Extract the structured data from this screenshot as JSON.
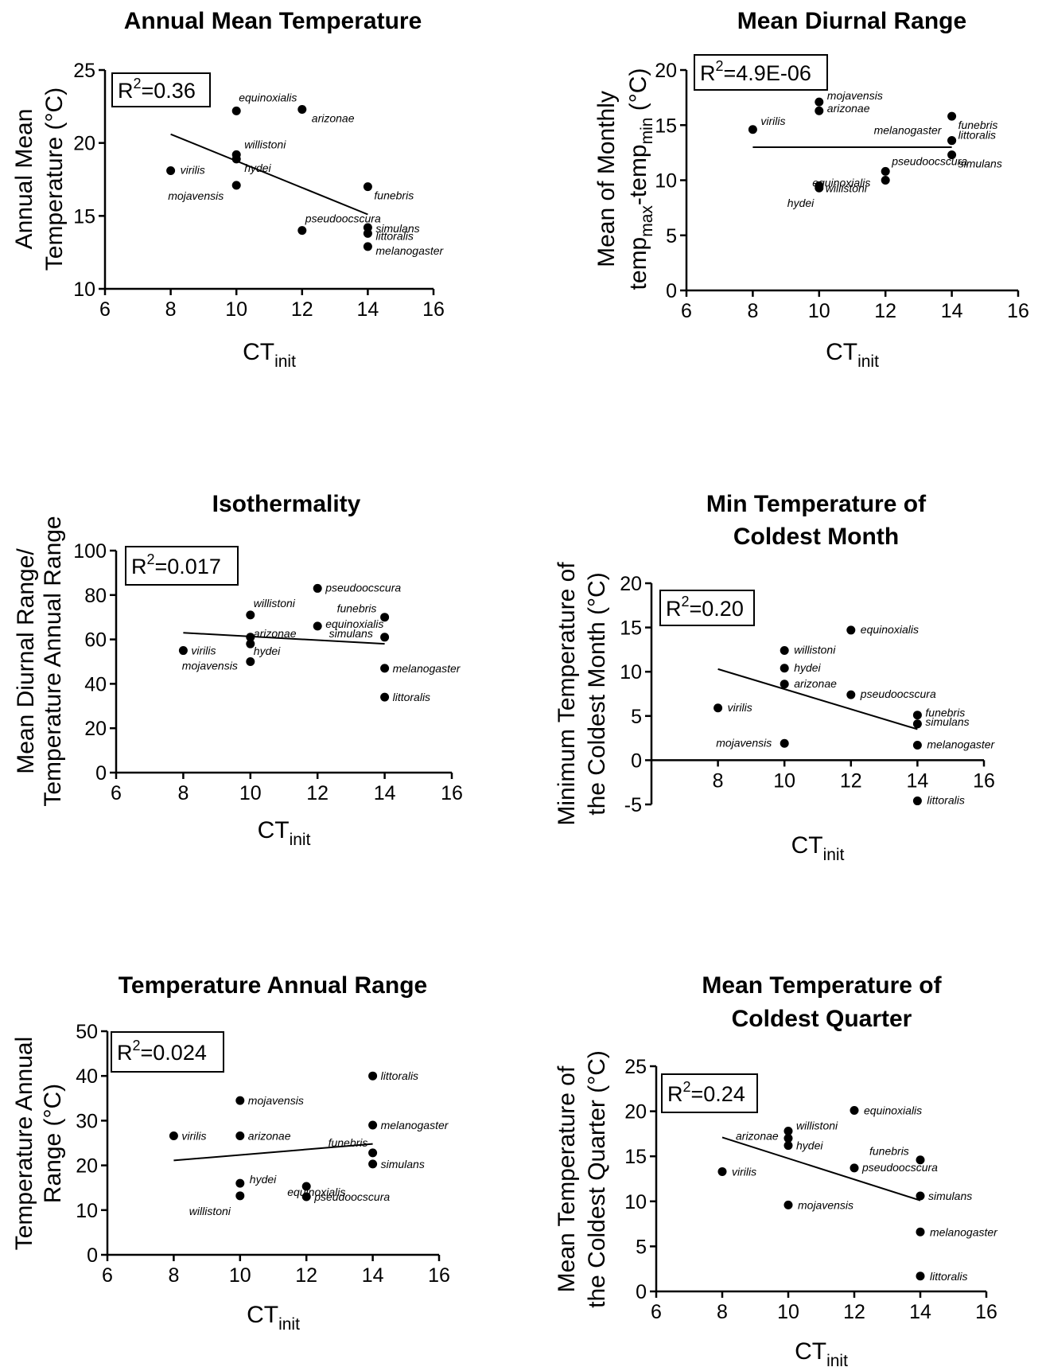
{
  "chart_data": [
    {
      "type": "scatter",
      "title": [
        "Annual Mean Temperature"
      ],
      "ylabel": [
        "Annual Mean",
        "Temperature  (°C)"
      ],
      "xlabel": {
        "main": "CT",
        "sub": "init"
      },
      "r2": {
        "base": "R",
        "sup": "2",
        "value": "=0.36"
      },
      "xlim": [
        6,
        16
      ],
      "ylim": [
        10,
        25
      ],
      "xticks": [
        6,
        8,
        10,
        12,
        14,
        16
      ],
      "yticks": [
        10,
        15,
        20,
        25
      ],
      "points": [
        {
          "x": 8,
          "y": 18.1,
          "name": "virilis"
        },
        {
          "x": 10,
          "y": 22.2,
          "name": "equinoxialis"
        },
        {
          "x": 12,
          "y": 22.3,
          "name": "arizonae"
        },
        {
          "x": 10,
          "y": 19.2,
          "name": "willistoni"
        },
        {
          "x": 10,
          "y": 18.9,
          "name": "hydei"
        },
        {
          "x": 10,
          "y": 17.1,
          "name": "mojavensis"
        },
        {
          "x": 14,
          "y": 17.0,
          "name": "funebris"
        },
        {
          "x": 12,
          "y": 14.0,
          "name": "pseudoocscura"
        },
        {
          "x": 14,
          "y": 14.2,
          "name": "simulans"
        },
        {
          "x": 14,
          "y": 13.8,
          "name": "littoralis"
        },
        {
          "x": 14,
          "y": 12.9,
          "name": "melanogaster"
        }
      ],
      "trend": {
        "x": [
          8,
          14
        ],
        "y": [
          20.6,
          15.1
        ]
      }
    },
    {
      "type": "scatter",
      "title": [
        "Mean Diurnal Range"
      ],
      "ylabel": [
        "Mean of Monthly",
        {
          "main": "temp",
          "sub1": "max",
          "mid": "-temp",
          "sub2": "min",
          "tail": " (°C)"
        }
      ],
      "xlabel": {
        "main": "CT",
        "sub": "init"
      },
      "r2": {
        "base": "R",
        "sup": "2",
        "value": "=4.9E-06"
      },
      "xlim": [
        6,
        16
      ],
      "ylim": [
        0,
        20
      ],
      "xticks": [
        6,
        8,
        10,
        12,
        14,
        16
      ],
      "yticks": [
        0,
        5,
        10,
        15,
        20
      ],
      "points": [
        {
          "x": 8,
          "y": 14.6,
          "name": "virilis"
        },
        {
          "x": 10,
          "y": 17.1,
          "name": "mojavensis"
        },
        {
          "x": 10,
          "y": 16.3,
          "name": "arizonae"
        },
        {
          "x": 14,
          "y": 15.8,
          "name": "funebris"
        },
        {
          "x": 14,
          "y": 13.6,
          "name": "melanogaster"
        },
        {
          "x": 14,
          "y": 13.6,
          "name": "littoralis"
        },
        {
          "x": 14,
          "y": 12.3,
          "name": "simulans"
        },
        {
          "x": 12,
          "y": 10.8,
          "name": "pseudoocscura"
        },
        {
          "x": 12,
          "y": 10.0,
          "name": "equinoxialis"
        },
        {
          "x": 10,
          "y": 9.5,
          "name": "willistoni"
        },
        {
          "x": 10,
          "y": 9.3,
          "name": "hydei"
        }
      ],
      "trend": {
        "x": [
          8,
          14
        ],
        "y": [
          13.0,
          13.0
        ]
      }
    },
    {
      "type": "scatter",
      "title": [
        "Isothermality"
      ],
      "ylabel": [
        "Mean Diurnal Range/",
        "Temperature Annual Range"
      ],
      "xlabel": {
        "main": "CT",
        "sub": "init"
      },
      "r2": {
        "base": "R",
        "sup": "2",
        "value": "=0.017"
      },
      "xlim": [
        6,
        16
      ],
      "ylim": [
        0,
        100
      ],
      "xticks": [
        6,
        8,
        10,
        12,
        14,
        16
      ],
      "yticks": [
        0,
        20,
        40,
        60,
        80,
        100
      ],
      "points": [
        {
          "x": 8,
          "y": 55,
          "name": "virilis"
        },
        {
          "x": 10,
          "y": 71,
          "name": "willistoni"
        },
        {
          "x": 10,
          "y": 61,
          "name": "arizonae"
        },
        {
          "x": 10,
          "y": 58,
          "name": "hydei"
        },
        {
          "x": 10,
          "y": 50,
          "name": "mojavensis"
        },
        {
          "x": 12,
          "y": 83,
          "name": "pseudoocscura"
        },
        {
          "x": 12,
          "y": 66,
          "name": "equinoxialis"
        },
        {
          "x": 14,
          "y": 70,
          "name": "funebris"
        },
        {
          "x": 14,
          "y": 61,
          "name": "simulans"
        },
        {
          "x": 14,
          "y": 47,
          "name": "melanogaster"
        },
        {
          "x": 14,
          "y": 34,
          "name": "littoralis"
        }
      ],
      "trend": {
        "x": [
          8,
          14
        ],
        "y": [
          63,
          58
        ]
      }
    },
    {
      "type": "scatter",
      "title": [
        "Min Temperature of",
        "Coldest Month"
      ],
      "ylabel": [
        "Minimum Temperature of",
        "the Coldest Month (°C)"
      ],
      "xlabel": {
        "main": "CT",
        "sub": "init"
      },
      "r2": {
        "base": "R",
        "sup": "2",
        "value": "=0.20"
      },
      "xlim": [
        6,
        16
      ],
      "ylim": [
        -5,
        20
      ],
      "xticks": [
        8,
        10,
        12,
        14,
        16
      ],
      "yticks": [
        -5,
        0,
        5,
        10,
        15,
        20
      ],
      "points": [
        {
          "x": 12,
          "y": 14.7,
          "name": "equinoxialis"
        },
        {
          "x": 10,
          "y": 12.4,
          "name": "willistoni"
        },
        {
          "x": 10,
          "y": 10.4,
          "name": "hydei"
        },
        {
          "x": 10,
          "y": 8.6,
          "name": "arizonae"
        },
        {
          "x": 12,
          "y": 7.4,
          "name": "pseudoocscura"
        },
        {
          "x": 8,
          "y": 5.9,
          "name": "virilis"
        },
        {
          "x": 14,
          "y": 5.1,
          "name": "funebris"
        },
        {
          "x": 14,
          "y": 4.1,
          "name": "simulans"
        },
        {
          "x": 10,
          "y": 1.9,
          "name": "mojavensis"
        },
        {
          "x": 14,
          "y": 1.7,
          "name": "melanogaster"
        },
        {
          "x": 14,
          "y": -4.6,
          "name": "littoralis"
        }
      ],
      "trend": {
        "x": [
          8,
          14
        ],
        "y": [
          10.3,
          3.5
        ]
      }
    },
    {
      "type": "scatter",
      "title": [
        "Temperature Annual Range"
      ],
      "ylabel": [
        "Temperature Annual",
        "Range (°C)"
      ],
      "xlabel": {
        "main": "CT",
        "sub": "init"
      },
      "r2": {
        "base": "R",
        "sup": "2",
        "value": "=0.024"
      },
      "xlim": [
        6,
        16
      ],
      "ylim": [
        0,
        50
      ],
      "xticks": [
        6,
        8,
        10,
        12,
        14,
        16
      ],
      "yticks": [
        0,
        10,
        20,
        30,
        40,
        50
      ],
      "points": [
        {
          "x": 14,
          "y": 40.0,
          "name": "littoralis"
        },
        {
          "x": 10,
          "y": 34.5,
          "name": "mojavensis"
        },
        {
          "x": 14,
          "y": 29.0,
          "name": "melanogaster"
        },
        {
          "x": 8,
          "y": 26.6,
          "name": "virilis"
        },
        {
          "x": 10,
          "y": 26.6,
          "name": "arizonae"
        },
        {
          "x": 14,
          "y": 22.8,
          "name": "funebris"
        },
        {
          "x": 14,
          "y": 20.3,
          "name": "simulans"
        },
        {
          "x": 10,
          "y": 16.0,
          "name": "hydei"
        },
        {
          "x": 12,
          "y": 15.3,
          "name": "equinoxialis"
        },
        {
          "x": 10,
          "y": 13.2,
          "name": "willistoni"
        },
        {
          "x": 12,
          "y": 13.0,
          "name": "pseudoocscura"
        }
      ],
      "trend": {
        "x": [
          8,
          14
        ],
        "y": [
          21.1,
          24.8
        ]
      }
    },
    {
      "type": "scatter",
      "title": [
        "Mean Temperature of",
        "Coldest Quarter"
      ],
      "ylabel": [
        "Mean Temperature of",
        "the Coldest Quarter (°C)"
      ],
      "xlabel": {
        "main": "CT",
        "sub": "init"
      },
      "r2": {
        "base": "R",
        "sup": "2",
        "value": "=0.24"
      },
      "xlim": [
        6,
        16
      ],
      "ylim": [
        0,
        25
      ],
      "xticks": [
        6,
        8,
        10,
        12,
        14,
        16
      ],
      "yticks": [
        0,
        5,
        10,
        15,
        20,
        25
      ],
      "points": [
        {
          "x": 12,
          "y": 20.1,
          "name": "equinoxialis"
        },
        {
          "x": 10,
          "y": 17.8,
          "name": "willistoni"
        },
        {
          "x": 10,
          "y": 17.0,
          "name": "arizonae"
        },
        {
          "x": 10,
          "y": 16.2,
          "name": "hydei"
        },
        {
          "x": 14,
          "y": 14.6,
          "name": "funebris"
        },
        {
          "x": 12,
          "y": 13.7,
          "name": "pseudoocscura"
        },
        {
          "x": 8,
          "y": 13.3,
          "name": "virilis"
        },
        {
          "x": 14,
          "y": 10.6,
          "name": "simulans"
        },
        {
          "x": 10,
          "y": 9.6,
          "name": "mojavensis"
        },
        {
          "x": 14,
          "y": 6.6,
          "name": "melanogaster"
        },
        {
          "x": 14,
          "y": 1.7,
          "name": "littoralis"
        }
      ],
      "trend": {
        "x": [
          8,
          14
        ],
        "y": [
          17.1,
          10.1
        ]
      }
    }
  ]
}
